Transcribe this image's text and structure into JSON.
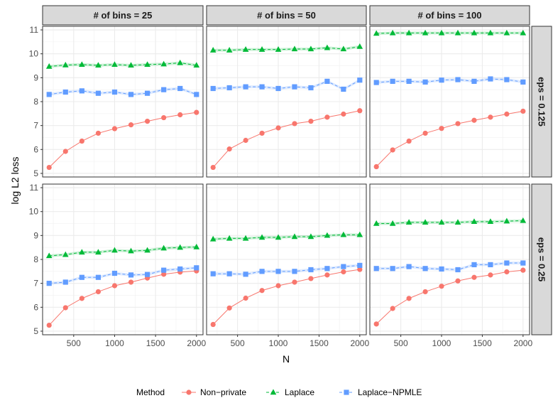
{
  "chart_data": {
    "type": "line",
    "xlabel": "N",
    "ylabel": "log L2 loss",
    "x": [
      200,
      400,
      600,
      800,
      1000,
      1200,
      1400,
      1600,
      1800,
      2000
    ],
    "xticks": [
      500,
      1000,
      1500,
      2000
    ],
    "xlim": [
      120,
      2080
    ],
    "yticks": [
      5,
      6,
      7,
      8,
      9,
      10,
      11
    ],
    "ylim": [
      4.85,
      11.15
    ],
    "grid": true,
    "legend_position": "bottom",
    "column_facet": [
      "# of bins = 25",
      "# of bins = 50",
      "# of bins = 100"
    ],
    "row_facet": [
      "eps = 0.125",
      "eps = 0.25"
    ],
    "legend": {
      "title": "Method",
      "entries": [
        {
          "label": "Non−private",
          "color": "#F8766D",
          "shape": "circle",
          "line": "solid"
        },
        {
          "label": "Laplace",
          "color": "#00BA38",
          "shape": "triangle",
          "line": "dashed"
        },
        {
          "label": "Laplace−NPMLE",
          "color": "#619CFF",
          "shape": "square",
          "line": "dashed"
        }
      ]
    },
    "panels": [
      {
        "col": 0,
        "row": 0,
        "series": [
          {
            "name": "Non−private",
            "values": [
              5.25,
              5.92,
              6.35,
              6.68,
              6.87,
              7.03,
              7.18,
              7.33,
              7.45,
              7.55
            ]
          },
          {
            "name": "Laplace",
            "values": [
              9.47,
              9.53,
              9.55,
              9.52,
              9.55,
              9.52,
              9.55,
              9.57,
              9.62,
              9.52
            ]
          },
          {
            "name": "Laplace−NPMLE",
            "values": [
              8.3,
              8.4,
              8.45,
              8.35,
              8.4,
              8.3,
              8.35,
              8.5,
              8.55,
              8.3
            ]
          }
        ]
      },
      {
        "col": 1,
        "row": 0,
        "series": [
          {
            "name": "Non−private",
            "values": [
              5.25,
              6.02,
              6.38,
              6.68,
              6.9,
              7.08,
              7.18,
              7.35,
              7.48,
              7.62
            ]
          },
          {
            "name": "Laplace",
            "values": [
              10.15,
              10.15,
              10.18,
              10.18,
              10.18,
              10.2,
              10.2,
              10.25,
              10.2,
              10.3
            ]
          },
          {
            "name": "Laplace−NPMLE",
            "values": [
              8.55,
              8.58,
              8.62,
              8.62,
              8.55,
              8.62,
              8.58,
              8.85,
              8.52,
              8.9
            ]
          }
        ]
      },
      {
        "col": 2,
        "row": 0,
        "series": [
          {
            "name": "Non−private",
            "values": [
              5.28,
              5.98,
              6.35,
              6.68,
              6.88,
              7.08,
              7.22,
              7.35,
              7.48,
              7.6
            ]
          },
          {
            "name": "Laplace",
            "values": [
              10.85,
              10.87,
              10.87,
              10.87,
              10.87,
              10.87,
              10.87,
              10.87,
              10.87,
              10.87
            ]
          },
          {
            "name": "Laplace−NPMLE",
            "values": [
              8.8,
              8.85,
              8.85,
              8.82,
              8.9,
              8.92,
              8.85,
              8.95,
              8.92,
              8.82
            ]
          }
        ]
      },
      {
        "col": 0,
        "row": 1,
        "series": [
          {
            "name": "Non−private",
            "values": [
              5.25,
              5.98,
              6.37,
              6.65,
              6.9,
              7.05,
              7.22,
              7.38,
              7.47,
              7.52
            ]
          },
          {
            "name": "Laplace",
            "values": [
              8.15,
              8.2,
              8.3,
              8.3,
              8.38,
              8.35,
              8.38,
              8.47,
              8.5,
              8.52
            ]
          },
          {
            "name": "Laplace−NPMLE",
            "values": [
              7.0,
              7.05,
              7.25,
              7.25,
              7.42,
              7.35,
              7.37,
              7.55,
              7.6,
              7.65
            ]
          }
        ]
      },
      {
        "col": 1,
        "row": 1,
        "series": [
          {
            "name": "Non−private",
            "values": [
              5.28,
              5.97,
              6.38,
              6.7,
              6.9,
              7.05,
              7.2,
              7.35,
              7.48,
              7.58
            ]
          },
          {
            "name": "Laplace",
            "values": [
              8.85,
              8.88,
              8.88,
              8.92,
              8.92,
              8.95,
              8.95,
              9.0,
              9.03,
              9.03
            ]
          },
          {
            "name": "Laplace−NPMLE",
            "values": [
              7.4,
              7.4,
              7.38,
              7.5,
              7.5,
              7.5,
              7.57,
              7.62,
              7.7,
              7.75
            ]
          }
        ]
      },
      {
        "col": 2,
        "row": 1,
        "series": [
          {
            "name": "Non−private",
            "values": [
              5.3,
              5.95,
              6.37,
              6.65,
              6.88,
              7.1,
              7.25,
              7.35,
              7.48,
              7.55
            ]
          },
          {
            "name": "Laplace",
            "values": [
              9.5,
              9.5,
              9.55,
              9.55,
              9.55,
              9.55,
              9.58,
              9.58,
              9.6,
              9.62
            ]
          },
          {
            "name": "Laplace−NPMLE",
            "values": [
              7.62,
              7.62,
              7.7,
              7.62,
              7.6,
              7.57,
              7.78,
              7.78,
              7.85,
              7.85
            ]
          }
        ]
      }
    ]
  }
}
